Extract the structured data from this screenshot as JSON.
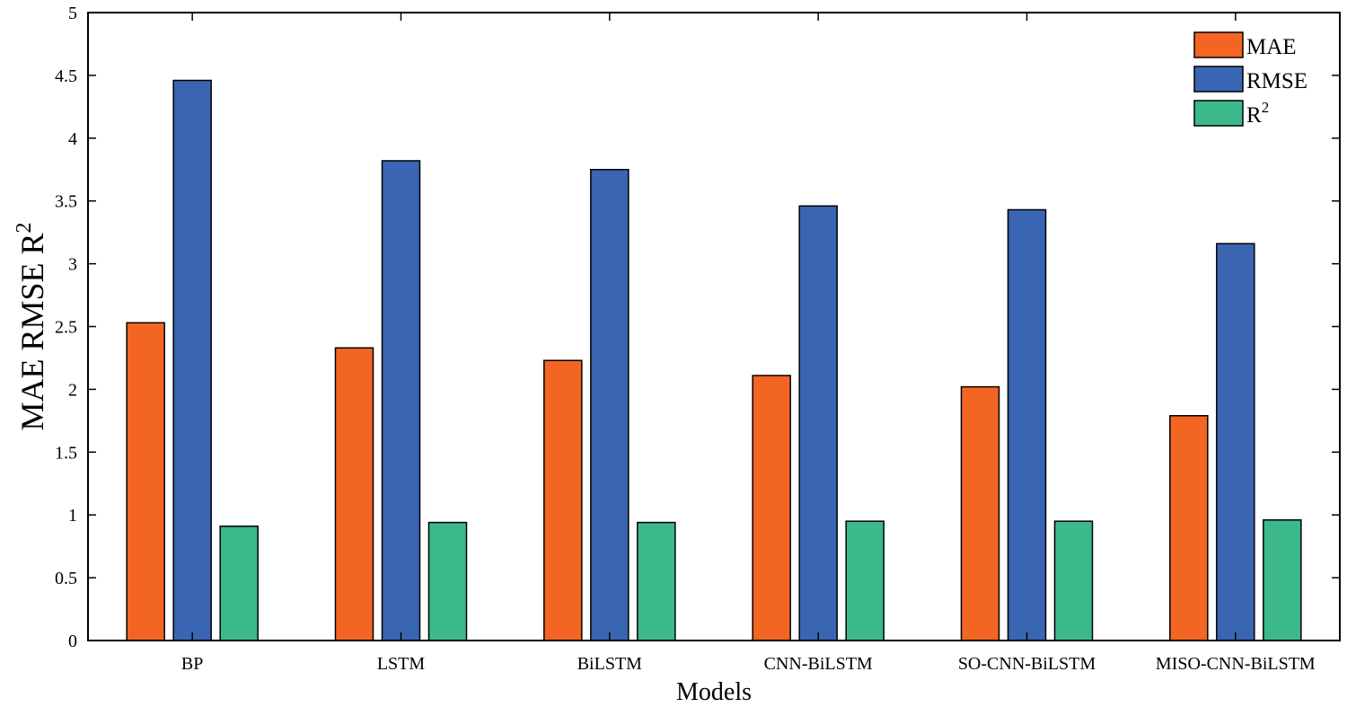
{
  "chart_data": {
    "type": "bar",
    "title": "",
    "xlabel": "Models",
    "ylabel": "MAE  RMSE  R",
    "ylabel_sup": "2",
    "ylim": [
      0,
      5
    ],
    "yticks": [
      0,
      0.5,
      1,
      1.5,
      2,
      2.5,
      3,
      3.5,
      4,
      4.5,
      5
    ],
    "ytick_labels": [
      "0",
      "0.5",
      "1",
      "1.5",
      "2",
      "2.5",
      "3",
      "3.5",
      "4",
      "4.5",
      "5"
    ],
    "grid": false,
    "legend_position": "top-right",
    "categories": [
      "BP",
      "LSTM",
      "BiLSTM",
      "CNN-BiLSTM",
      "SO-CNN-BiLSTM",
      "MISO-CNN-BiLSTM"
    ],
    "series": [
      {
        "name": "MAE",
        "legend_text": "MAE",
        "legend_sup": "",
        "color": "#F26522",
        "values": [
          2.53,
          2.33,
          2.23,
          2.11,
          2.02,
          1.79
        ]
      },
      {
        "name": "RMSE",
        "legend_text": "RMSE",
        "legend_sup": "",
        "color": "#3A65B2",
        "values": [
          4.46,
          3.82,
          3.75,
          3.46,
          3.43,
          3.16
        ]
      },
      {
        "name": "R2",
        "legend_text": "R",
        "legend_sup": "2",
        "color": "#3CB98A",
        "values": [
          0.91,
          0.94,
          0.94,
          0.95,
          0.95,
          0.96
        ]
      }
    ]
  }
}
